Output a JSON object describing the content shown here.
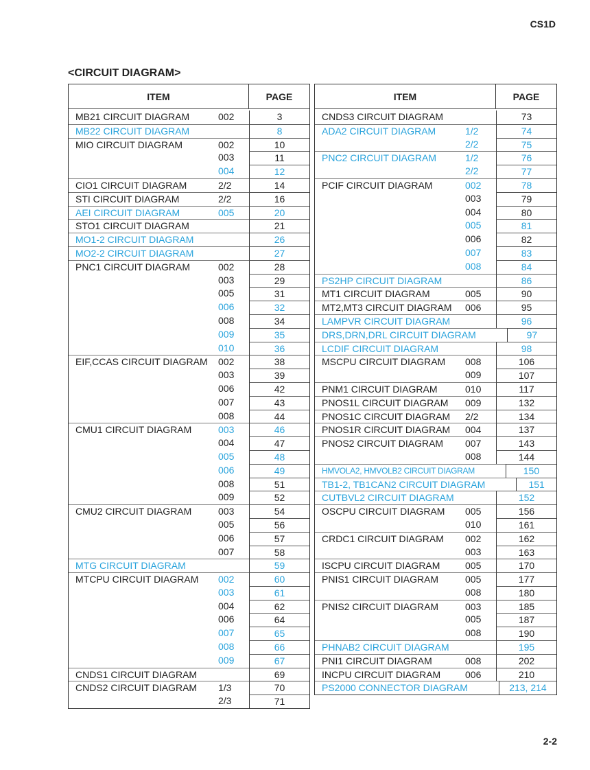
{
  "header_code": "CS1D",
  "section_title": "<CIRCUIT DIAGRAM>",
  "page_number": "2-2",
  "colors": {
    "link": "#29a3dc",
    "text": "#222222"
  },
  "columns": {
    "item": "ITEM",
    "page": "PAGE"
  },
  "left_table": [
    {
      "name": "MB21 CIRCUIT DIAGRAM",
      "rows": [
        [
          "002",
          "3",
          0
        ]
      ]
    },
    {
      "name": "MB22 CIRCUIT DIAGRAM",
      "b": 1,
      "rows": [
        [
          "",
          "8",
          1
        ]
      ]
    },
    {
      "name": "MIO CIRCUIT DIAGRAM",
      "rows": [
        [
          "002",
          "10",
          0
        ],
        [
          "003",
          "11",
          0
        ],
        [
          "004",
          "12",
          1
        ]
      ]
    },
    {
      "name": "CIO1 CIRCUIT DIAGRAM",
      "rows": [
        [
          "2/2",
          "14",
          0
        ]
      ]
    },
    {
      "name": "STI CIRCUIT DIAGRAM",
      "rows": [
        [
          "2/2",
          "16",
          0
        ]
      ]
    },
    {
      "name": "AEI CIRCUIT DIAGRAM",
      "b": 1,
      "rows": [
        [
          "005",
          "20",
          1
        ]
      ]
    },
    {
      "name": "STO1 CIRCUIT DIAGRAM",
      "rows": [
        [
          "",
          "21",
          0
        ]
      ]
    },
    {
      "name": "MO1-2 CIRCUIT DIAGRAM",
      "b": 1,
      "rows": [
        [
          "",
          "26",
          1
        ]
      ]
    },
    {
      "name": "MO2-2 CIRCUIT DIAGRAM",
      "b": 1,
      "rows": [
        [
          "",
          "27",
          1
        ]
      ]
    },
    {
      "name": "PNC1 CIRCUIT DIAGRAM",
      "rows": [
        [
          "002",
          "28",
          0
        ],
        [
          "003",
          "29",
          0
        ],
        [
          "005",
          "31",
          0
        ],
        [
          "006",
          "32",
          1
        ],
        [
          "008",
          "34",
          0
        ],
        [
          "009",
          "35",
          1
        ],
        [
          "010",
          "36",
          1
        ]
      ]
    },
    {
      "name": "EIF,CCAS CIRCUIT DIAGRAM",
      "rows": [
        [
          "002",
          "38",
          0
        ],
        [
          "003",
          "39",
          0
        ],
        [
          "006",
          "42",
          0
        ],
        [
          "007",
          "43",
          0
        ],
        [
          "008",
          "44",
          0
        ]
      ]
    },
    {
      "name": "CMU1 CIRCUIT DIAGRAM",
      "rows": [
        [
          "003",
          "46",
          1
        ],
        [
          "004",
          "47",
          0
        ],
        [
          "005",
          "48",
          1
        ],
        [
          "006",
          "49",
          1
        ],
        [
          "008",
          "51",
          0
        ],
        [
          "009",
          "52",
          0
        ]
      ]
    },
    {
      "name": "CMU2 CIRCUIT DIAGRAM",
      "rows": [
        [
          "003",
          "54",
          0
        ],
        [
          "005",
          "56",
          0
        ],
        [
          "006",
          "57",
          0
        ],
        [
          "007",
          "58",
          0
        ]
      ]
    },
    {
      "name": "MTG CIRCUIT DIAGRAM",
      "b": 1,
      "rows": [
        [
          "",
          "59",
          1
        ]
      ]
    },
    {
      "name": "MTCPU CIRCUIT DIAGRAM",
      "rows": [
        [
          "002",
          "60",
          1
        ],
        [
          "003",
          "61",
          1
        ],
        [
          "004",
          "62",
          0
        ],
        [
          "006",
          "64",
          0
        ],
        [
          "007",
          "65",
          1
        ],
        [
          "008",
          "66",
          1
        ],
        [
          "009",
          "67",
          1
        ]
      ]
    },
    {
      "name": "CNDS1 CIRCUIT DIAGRAM",
      "rows": [
        [
          "",
          "69",
          0
        ]
      ]
    },
    {
      "name": "CNDS2 CIRCUIT DIAGRAM",
      "rows": [
        [
          "1/3",
          "70",
          0
        ],
        [
          "2/3",
          "71",
          0
        ]
      ]
    }
  ],
  "right_table": [
    {
      "name": "CNDS3 CIRCUIT DIAGRAM",
      "rows": [
        [
          "",
          "73",
          0
        ]
      ]
    },
    {
      "name": "ADA2 CIRCUIT DIAGRAM",
      "b": 1,
      "rows": [
        [
          "1/2",
          "74",
          1
        ],
        [
          "2/2",
          "75",
          1
        ]
      ]
    },
    {
      "name": "PNC2 CIRCUIT DIAGRAM",
      "b": 1,
      "rows": [
        [
          "1/2",
          "76",
          1
        ],
        [
          "2/2",
          "77",
          1
        ]
      ]
    },
    {
      "name": "PCIF CIRCUIT DIAGRAM",
      "rows": [
        [
          "002",
          "78",
          1
        ],
        [
          "003",
          "79",
          0
        ],
        [
          "004",
          "80",
          0
        ],
        [
          "005",
          "81",
          1
        ],
        [
          "006",
          "82",
          0
        ],
        [
          "007",
          "83",
          1
        ],
        [
          "008",
          "84",
          1
        ]
      ]
    },
    {
      "name": "PS2HP CIRCUIT DIAGRAM",
      "b": 1,
      "rows": [
        [
          "",
          "86",
          1
        ]
      ]
    },
    {
      "name": "MT1 CIRCUIT DIAGRAM",
      "rows": [
        [
          "005",
          "90",
          0
        ]
      ]
    },
    {
      "name": "MT2,MT3 CIRCUIT DIAGRAM",
      "rows": [
        [
          "006",
          "95",
          0
        ]
      ]
    },
    {
      "name": "LAMPVR CIRCUIT DIAGRAM",
      "b": 1,
      "rows": [
        [
          "",
          "96",
          1
        ]
      ]
    },
    {
      "name": "DRS,DRN,DRL CIRCUIT DIAGRAM",
      "b": 1,
      "rows": [
        [
          "",
          "97",
          1
        ]
      ]
    },
    {
      "name": "LCDIF CIRCUIT DIAGRAM",
      "b": 1,
      "rows": [
        [
          "",
          "98",
          1
        ]
      ]
    },
    {
      "name": "MSCPU CIRCUIT DIAGRAM",
      "rows": [
        [
          "008",
          "106",
          0
        ],
        [
          "009",
          "107",
          0
        ]
      ]
    },
    {
      "name": "PNM1 CIRCUIT DIAGRAM",
      "rows": [
        [
          "010",
          "117",
          0
        ]
      ]
    },
    {
      "name": "PNOS1L CIRCUIT DIAGRAM",
      "rows": [
        [
          "009",
          "132",
          0
        ]
      ]
    },
    {
      "name": "PNOS1C CIRCUIT DIAGRAM",
      "rows": [
        [
          "2/2",
          "134",
          0
        ]
      ]
    },
    {
      "name": "PNOS1R CIRCUIT DIAGRAM",
      "rows": [
        [
          "004",
          "137",
          0
        ]
      ]
    },
    {
      "name": "PNOS2 CIRCUIT DIAGRAM",
      "rows": [
        [
          "007",
          "143",
          0
        ],
        [
          "008",
          "144",
          0
        ]
      ]
    },
    {
      "name": "HMVOLA2, HMVOLB2 CIRCUIT DIAGRAM",
      "b": 1,
      "cond": 1,
      "rows": [
        [
          "",
          "150",
          1
        ]
      ]
    },
    {
      "name": "TB1-2, TB1CAN2 CIRCUIT DIAGRAM",
      "b": 1,
      "rows": [
        [
          "",
          "151",
          1
        ]
      ]
    },
    {
      "name": "CUTBVL2 CIRCUIT DIAGRAM",
      "b": 1,
      "rows": [
        [
          "",
          "152",
          1
        ]
      ]
    },
    {
      "name": "OSCPU CIRCUIT DIAGRAM",
      "rows": [
        [
          "005",
          "156",
          0
        ],
        [
          "010",
          "161",
          0
        ]
      ]
    },
    {
      "name": "CRDC1 CIRCUIT DIAGRAM",
      "rows": [
        [
          "002",
          "162",
          0
        ],
        [
          "003",
          "163",
          0
        ]
      ]
    },
    {
      "name": "ISCPU CIRCUIT DIAGRAM",
      "rows": [
        [
          "005",
          "170",
          0
        ]
      ]
    },
    {
      "name": "PNIS1 CIRCUIT DIAGRAM",
      "rows": [
        [
          "005",
          "177",
          0
        ],
        [
          "008",
          "180",
          0
        ]
      ]
    },
    {
      "name": "PNIS2 CIRCUIT DIAGRAM",
      "rows": [
        [
          "003",
          "185",
          0
        ],
        [
          "005",
          "187",
          0
        ],
        [
          "008",
          "190",
          0
        ]
      ]
    },
    {
      "name": "PHNAB2 CIRCUIT DIAGRAM",
      "b": 1,
      "rows": [
        [
          "",
          "195",
          1
        ]
      ]
    },
    {
      "name": "PNI1 CIRCUIT DIAGRAM",
      "rows": [
        [
          "008",
          "202",
          0
        ]
      ]
    },
    {
      "name": "INCPU CIRCUIT DIAGRAM",
      "rows": [
        [
          "006",
          "210",
          0
        ]
      ]
    },
    {
      "name": "PS2000 CONNECTOR DIAGRAM",
      "b": 1,
      "rows": [
        [
          "",
          "213, 214",
          1
        ]
      ]
    }
  ]
}
